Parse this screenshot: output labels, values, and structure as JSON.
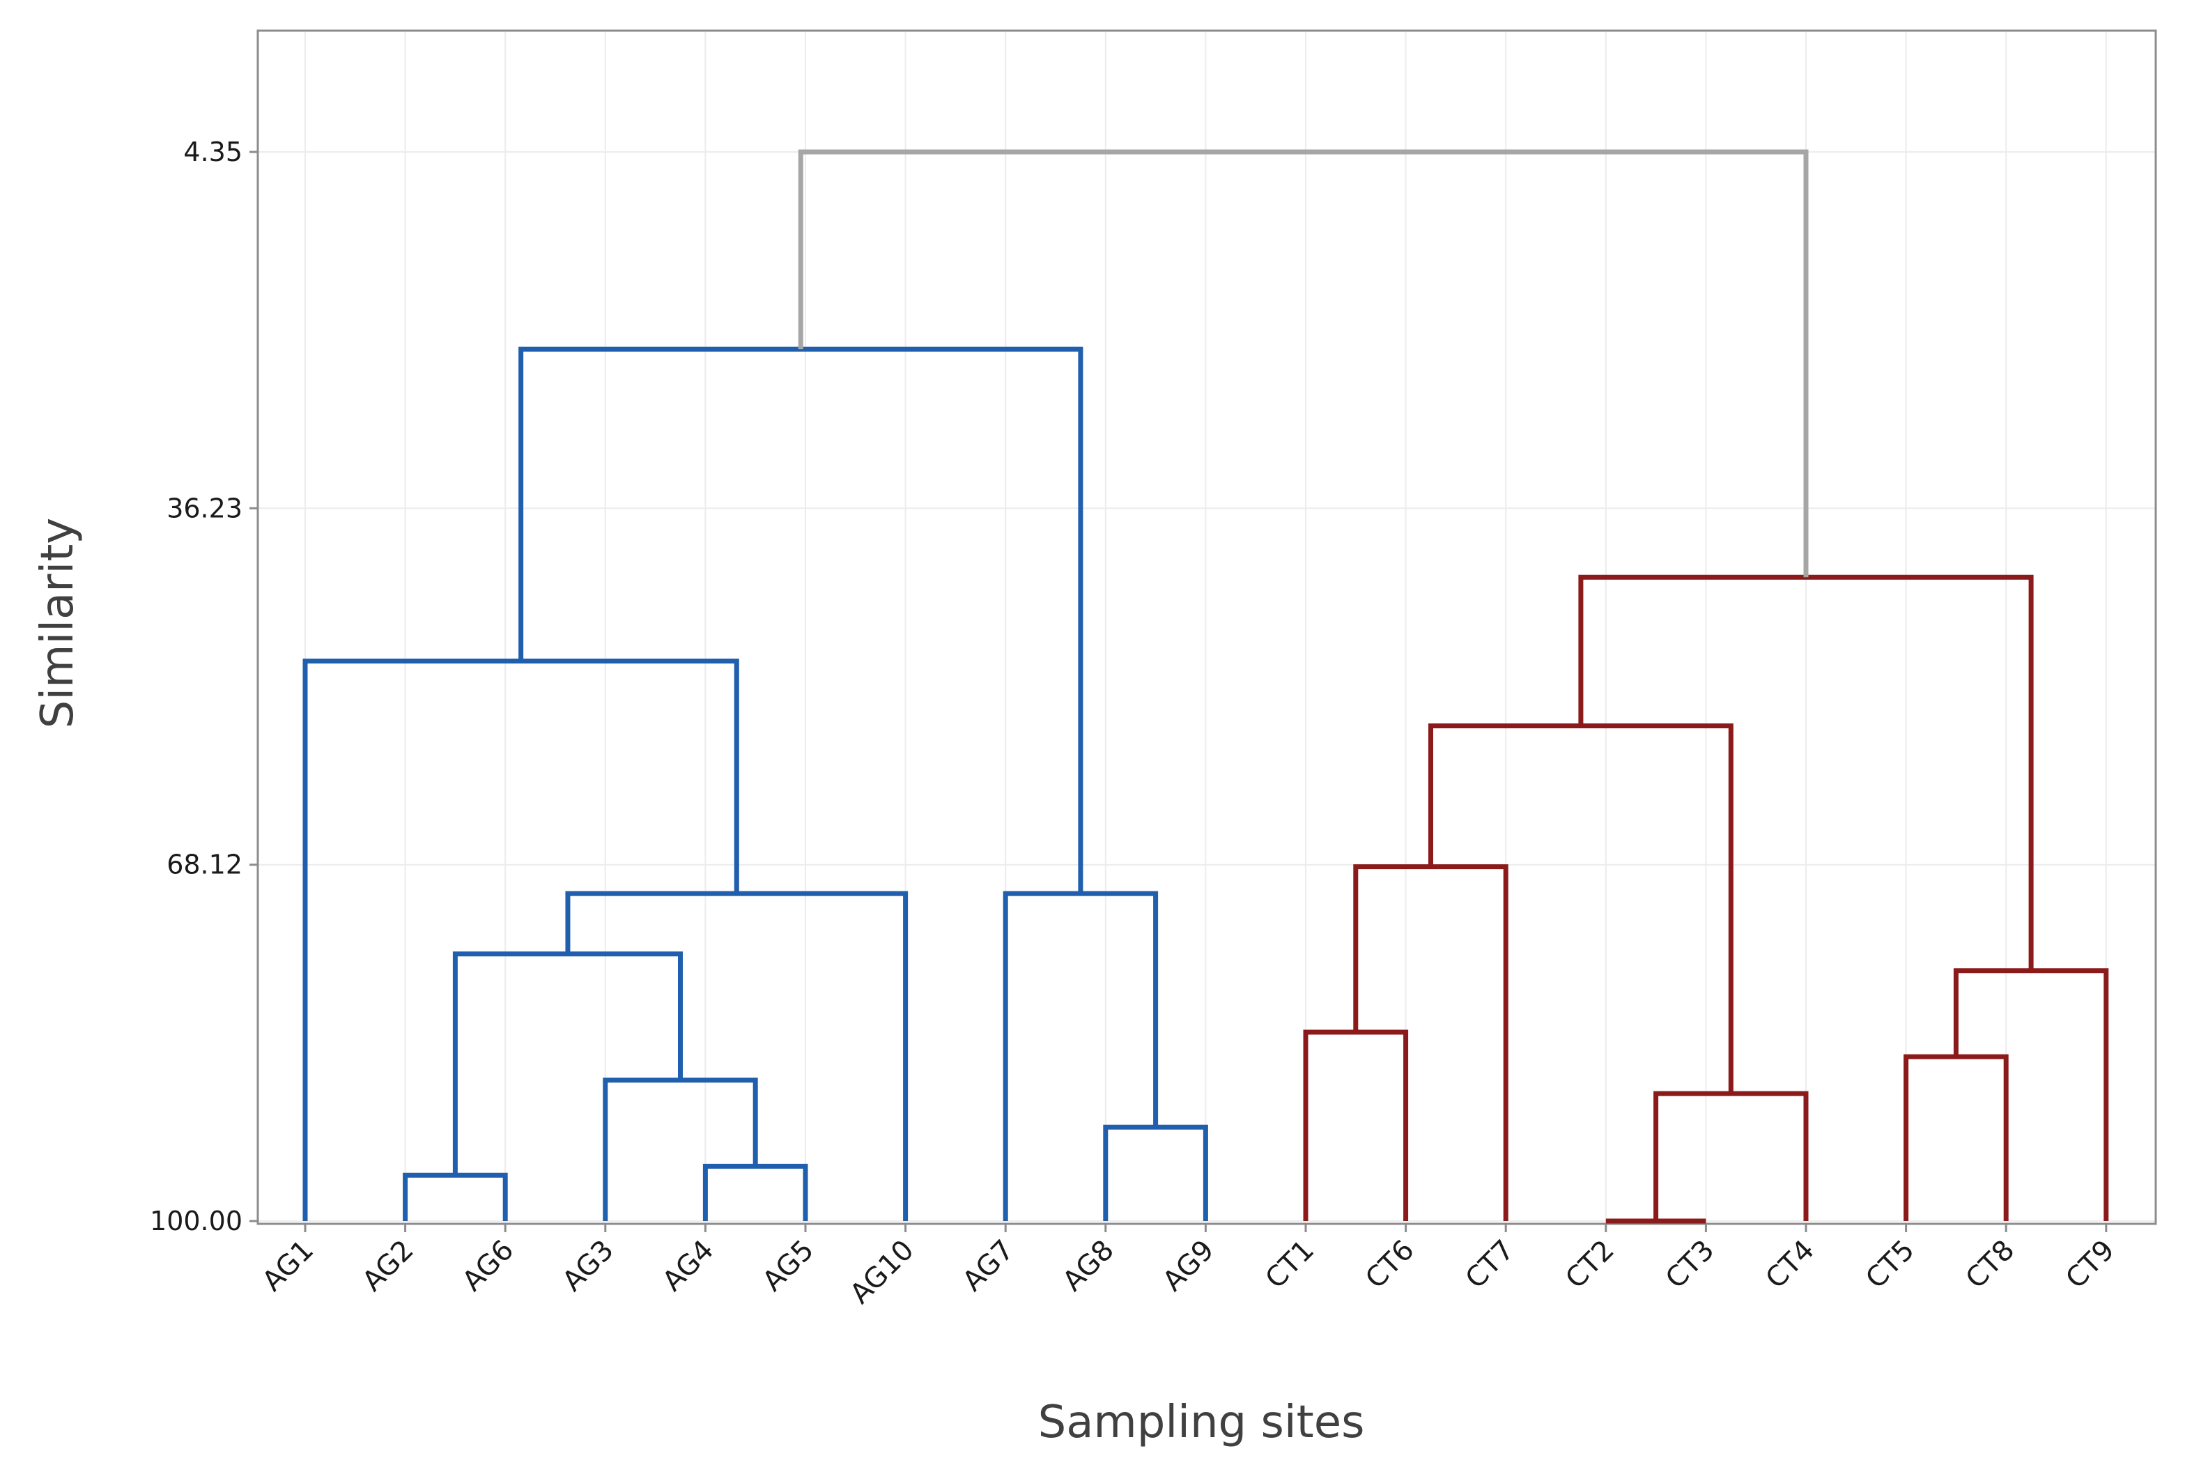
{
  "chart_data": {
    "type": "dendrogram",
    "xlabel": "Sampling sites",
    "ylabel": "Similarity",
    "y_ticks": [
      "4.35",
      "36.23",
      "68.12",
      "100.00"
    ],
    "ylim": [
      100.0,
      4.35
    ],
    "grid": true,
    "leaves": [
      "AG1",
      "AG2",
      "AG6",
      "AG3",
      "AG4",
      "AG5",
      "AG10",
      "AG7",
      "AG8",
      "AG9",
      "CT1",
      "CT6",
      "CT7",
      "CT2",
      "CT3",
      "CT4",
      "CT5",
      "CT8",
      "CT9"
    ],
    "merges": [
      {
        "left": "AG2",
        "right": "AG6",
        "similarity": 95.9,
        "cluster": "blue"
      },
      {
        "left": "AG4",
        "right": "AG5",
        "similarity": 95.1,
        "cluster": "blue"
      },
      {
        "left": "AG3",
        "right": "AG4+AG5",
        "similarity": 87.4,
        "cluster": "blue"
      },
      {
        "left": "AG2+AG6",
        "right": "AG3+AG4+AG5",
        "similarity": 76.1,
        "cluster": "blue"
      },
      {
        "left": "AG2-AG5",
        "right": "AG10",
        "similarity": 70.7,
        "cluster": "blue"
      },
      {
        "left": "AG1",
        "right": "AG2-AG10",
        "similarity": 49.9,
        "cluster": "blue"
      },
      {
        "left": "AG8",
        "right": "AG9",
        "similarity": 91.6,
        "cluster": "blue"
      },
      {
        "left": "AG7",
        "right": "AG8+AG9",
        "similarity": 70.7,
        "cluster": "blue"
      },
      {
        "left": "AG1-AG10",
        "right": "AG7-AG9",
        "similarity": 22.0,
        "cluster": "blue"
      },
      {
        "left": "CT2",
        "right": "CT3",
        "similarity": 100.0,
        "cluster": "red"
      },
      {
        "left": "CT2+CT3",
        "right": "CT4",
        "similarity": 88.6,
        "cluster": "red"
      },
      {
        "left": "CT1",
        "right": "CT6",
        "similarity": 83.1,
        "cluster": "red"
      },
      {
        "left": "CT1+CT6",
        "right": "CT7",
        "similarity": 68.3,
        "cluster": "red"
      },
      {
        "left": "CT1-CT7",
        "right": "CT2-CT4",
        "similarity": 55.7,
        "cluster": "red"
      },
      {
        "left": "CT5",
        "right": "CT8",
        "similarity": 85.3,
        "cluster": "red"
      },
      {
        "left": "CT5+CT8",
        "right": "CT9",
        "similarity": 77.6,
        "cluster": "red"
      },
      {
        "left": "CT1-CT4",
        "right": "CT5-CT9",
        "similarity": 42.4,
        "cluster": "red"
      },
      {
        "left": "AG",
        "right": "CT",
        "similarity": 4.35,
        "cluster": "gray"
      }
    ],
    "colors": {
      "blue": "#1f5fad",
      "red": "#8b1a1a",
      "gray": "#a6a6a6"
    }
  }
}
